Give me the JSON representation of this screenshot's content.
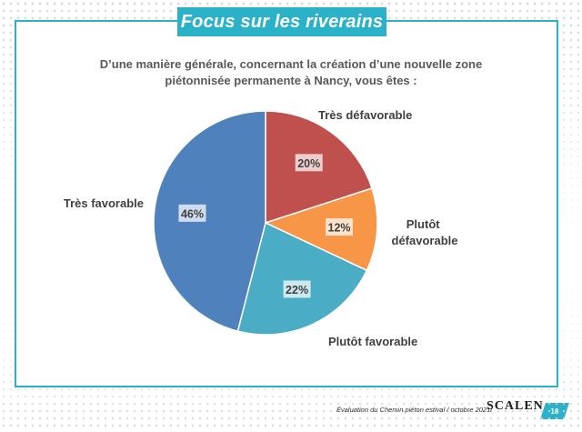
{
  "header": {
    "title": "Focus sur les riverains"
  },
  "question": {
    "line1": "D’une manière générale, concernant la création d’une nouvelle zone",
    "line2": "piétonnisée permanente à Nancy, vous êtes :"
  },
  "chart_data": {
    "type": "pie",
    "title": "D’une manière générale, concernant la création d’une nouvelle zone piétonnisée permanente à Nancy, vous êtes :",
    "start": "12 o'clock, clockwise",
    "slices": [
      {
        "label": "Très défavorable",
        "value": 20,
        "value_label": "20%",
        "color": "#c0504d"
      },
      {
        "label": "Plutôt défavorable",
        "value": 12,
        "value_label": "12%",
        "color": "#f79646"
      },
      {
        "label": "Plutôt favorable",
        "value": 22,
        "value_label": "22%",
        "color": "#4bacc6"
      },
      {
        "label": "Très favorable",
        "value": 46,
        "value_label": "46%",
        "color": "#4f81bd"
      }
    ]
  },
  "footer": {
    "text": "Évaluation du Chemin piéton estival / octobre 2021/",
    "brand": "SCALEN",
    "page": "18"
  }
}
